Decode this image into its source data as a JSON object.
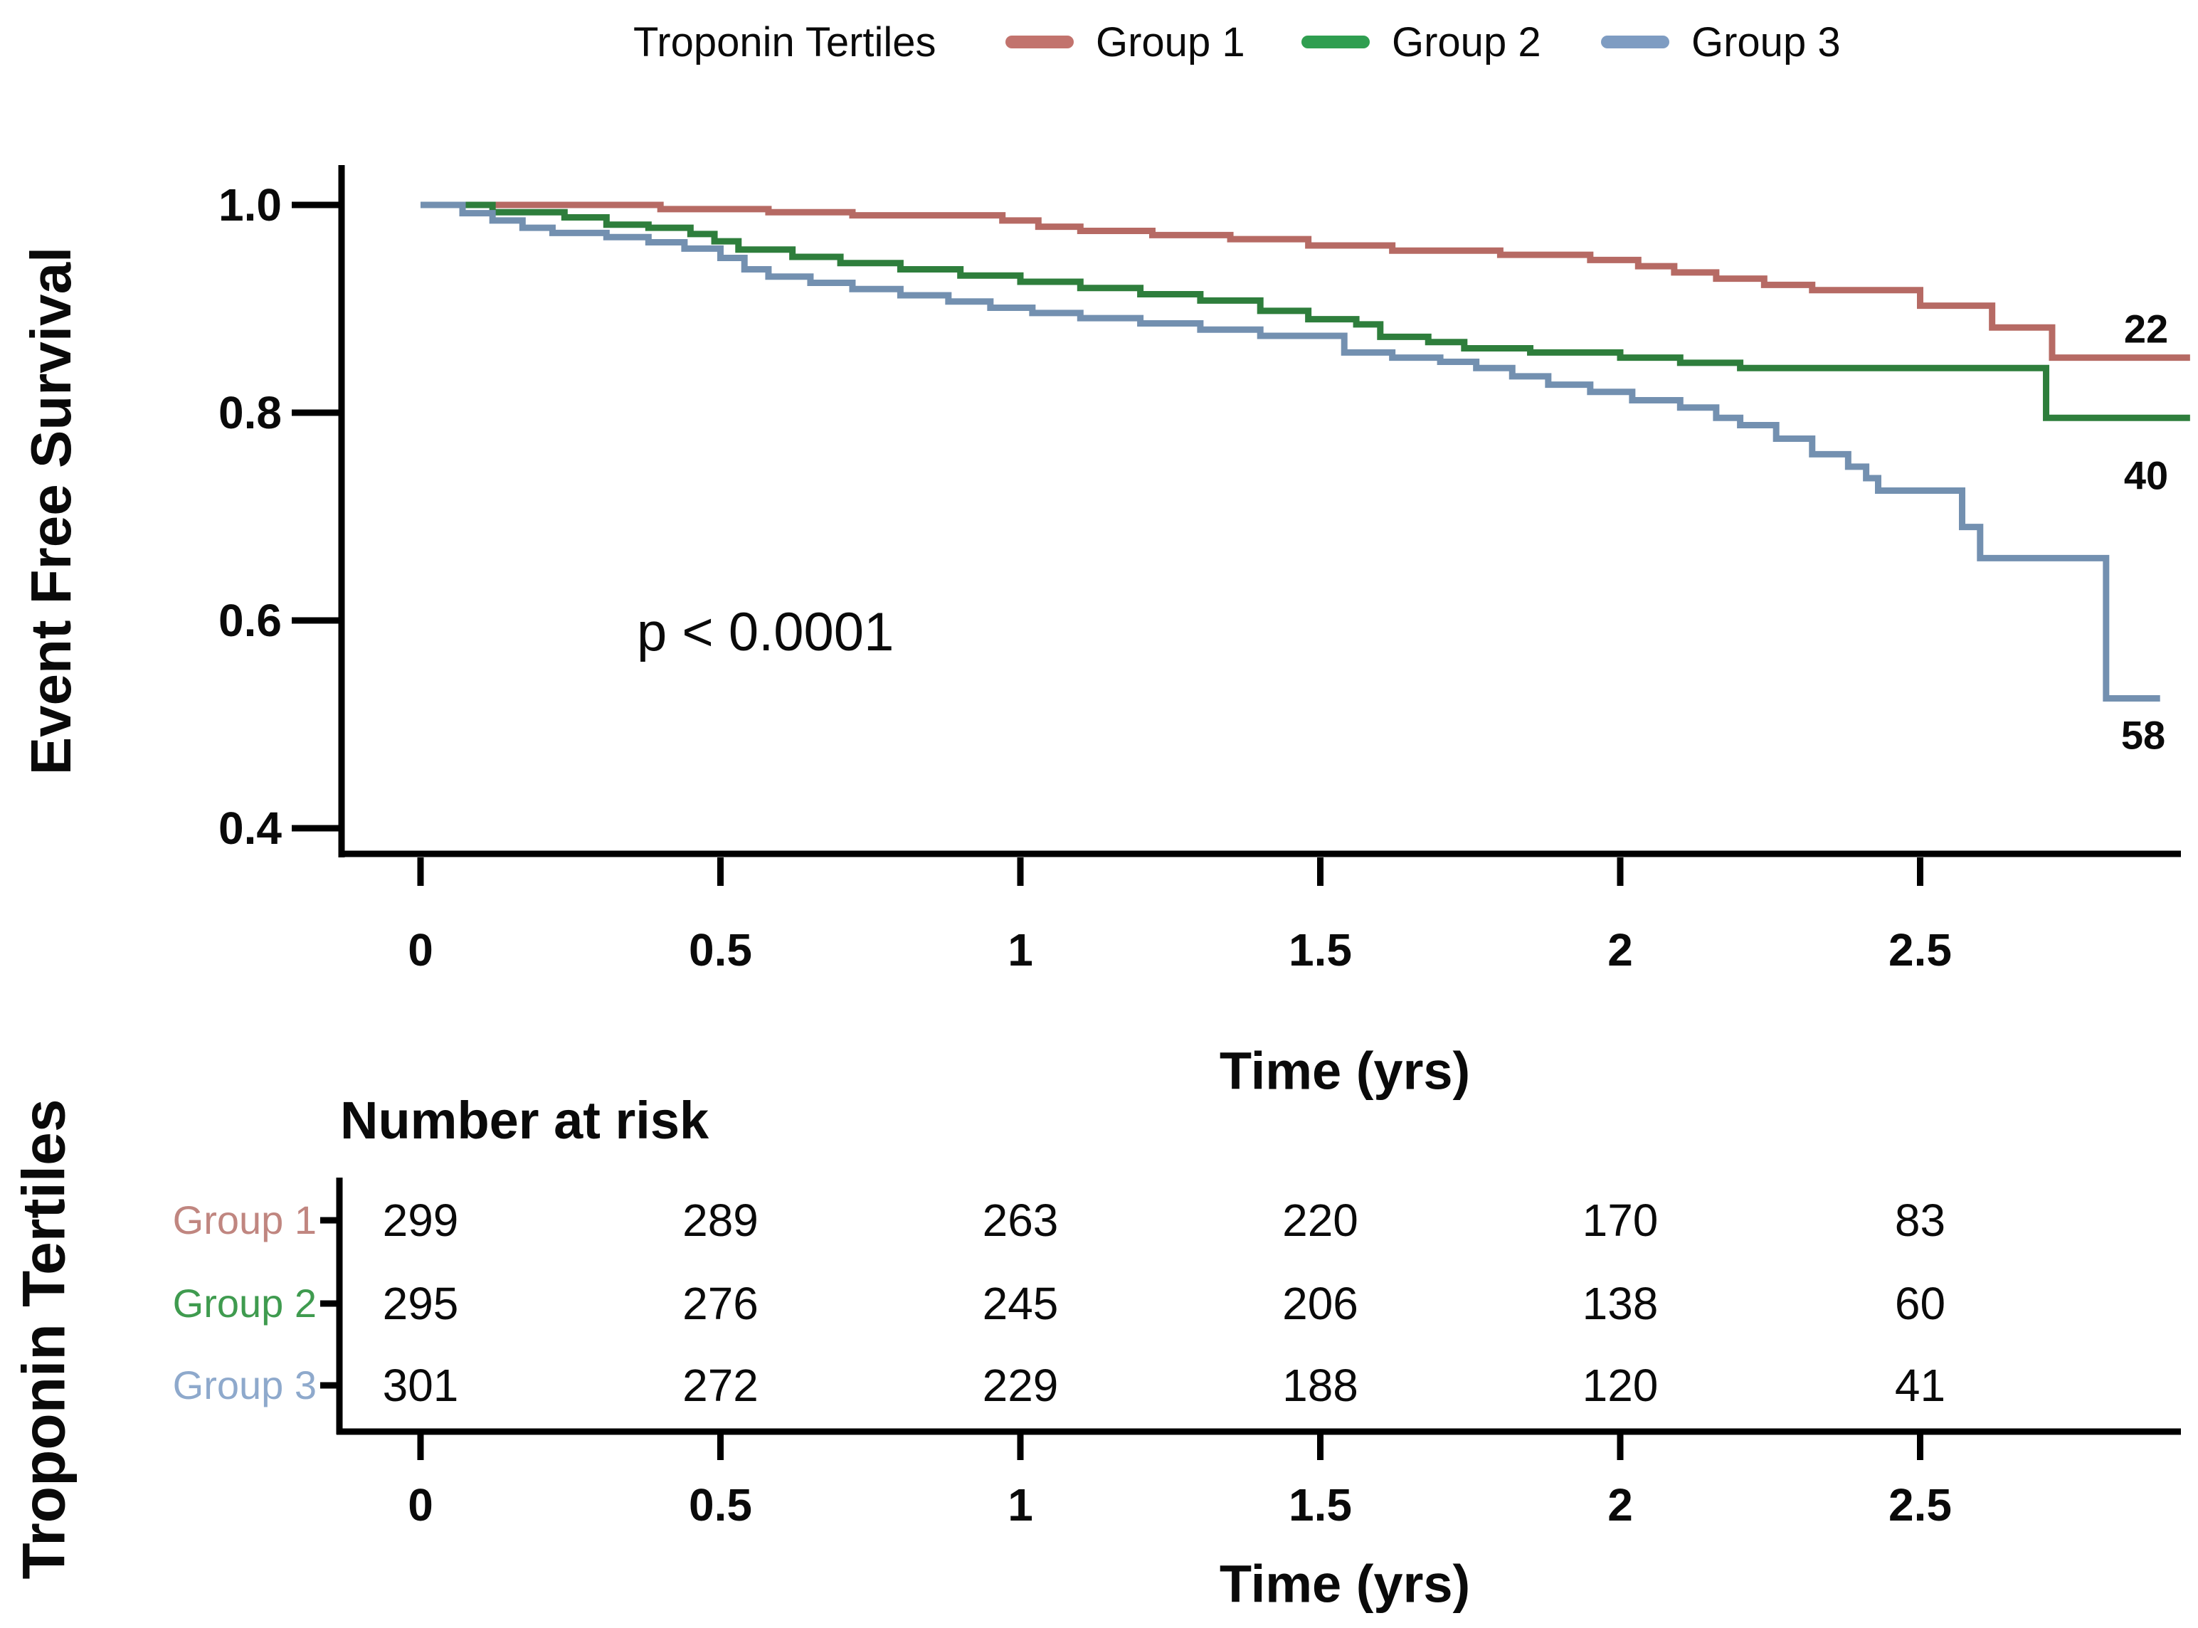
{
  "legend": {
    "title": "Troponin Tertiles",
    "items": [
      {
        "label": "Group 1",
        "color": "#c2736d"
      },
      {
        "label": "Group 2",
        "color": "#2f9e50"
      },
      {
        "label": "Group 3",
        "color": "#7e9cc2"
      }
    ]
  },
  "chart_data": {
    "type": "line",
    "subtype": "kaplan-meier-step",
    "title": "Troponin Tertiles",
    "xlabel": "Time (yrs)",
    "ylabel": "Event Free Survival",
    "annotation": "p < 0.0001",
    "xlim": [
      0,
      2.95
    ],
    "ylim": [
      0.35,
      1.02
    ],
    "x_ticks": [
      0,
      0.5,
      1,
      1.5,
      2,
      2.5
    ],
    "x_tick_labels": [
      "0",
      "0.5",
      "1",
      "1.5",
      "2",
      "2.5"
    ],
    "y_ticks": [
      1.0,
      0.8,
      0.6,
      0.4
    ],
    "y_tick_labels": [
      "1.0",
      "0.8",
      "0.6",
      "0.4"
    ],
    "grid": false,
    "legend_position": "top",
    "series": [
      {
        "name": "Group 1",
        "color": "#b66a64",
        "end_label": "22",
        "end": 2.95,
        "points": [
          [
            0,
            1.0
          ],
          [
            0.4,
            0.996
          ],
          [
            0.58,
            0.993
          ],
          [
            0.72,
            0.99
          ],
          [
            0.97,
            0.985
          ],
          [
            1.03,
            0.979
          ],
          [
            1.1,
            0.975
          ],
          [
            1.22,
            0.971
          ],
          [
            1.35,
            0.967
          ],
          [
            1.48,
            0.961
          ],
          [
            1.62,
            0.956
          ],
          [
            1.8,
            0.952
          ],
          [
            1.95,
            0.947
          ],
          [
            2.03,
            0.941
          ],
          [
            2.09,
            0.935
          ],
          [
            2.16,
            0.929
          ],
          [
            2.24,
            0.923
          ],
          [
            2.32,
            0.918
          ],
          [
            2.5,
            0.903
          ],
          [
            2.62,
            0.882
          ],
          [
            2.72,
            0.853
          ]
        ]
      },
      {
        "name": "Group 2",
        "color": "#2e7e3c",
        "end_label": "40",
        "end": 2.95,
        "points": [
          [
            0,
            1.0
          ],
          [
            0.12,
            0.993
          ],
          [
            0.24,
            0.988
          ],
          [
            0.31,
            0.981
          ],
          [
            0.38,
            0.978
          ],
          [
            0.45,
            0.972
          ],
          [
            0.49,
            0.965
          ],
          [
            0.53,
            0.957
          ],
          [
            0.62,
            0.95
          ],
          [
            0.7,
            0.944
          ],
          [
            0.8,
            0.938
          ],
          [
            0.9,
            0.932
          ],
          [
            1.0,
            0.926
          ],
          [
            1.1,
            0.92
          ],
          [
            1.2,
            0.914
          ],
          [
            1.3,
            0.908
          ],
          [
            1.4,
            0.898
          ],
          [
            1.48,
            0.89
          ],
          [
            1.56,
            0.885
          ],
          [
            1.6,
            0.873
          ],
          [
            1.68,
            0.868
          ],
          [
            1.74,
            0.862
          ],
          [
            1.85,
            0.858
          ],
          [
            2.0,
            0.853
          ],
          [
            2.1,
            0.848
          ],
          [
            2.2,
            0.843
          ],
          [
            2.71,
            0.795
          ]
        ]
      },
      {
        "name": "Group 3",
        "color": "#7390b0",
        "end_label": "58",
        "end": 2.9,
        "points": [
          [
            0,
            1.0
          ],
          [
            0.07,
            0.992
          ],
          [
            0.12,
            0.985
          ],
          [
            0.17,
            0.978
          ],
          [
            0.22,
            0.973
          ],
          [
            0.31,
            0.969
          ],
          [
            0.38,
            0.964
          ],
          [
            0.44,
            0.958
          ],
          [
            0.5,
            0.949
          ],
          [
            0.54,
            0.938
          ],
          [
            0.58,
            0.931
          ],
          [
            0.65,
            0.925
          ],
          [
            0.72,
            0.919
          ],
          [
            0.8,
            0.913
          ],
          [
            0.88,
            0.907
          ],
          [
            0.95,
            0.901
          ],
          [
            1.02,
            0.896
          ],
          [
            1.1,
            0.891
          ],
          [
            1.2,
            0.886
          ],
          [
            1.3,
            0.88
          ],
          [
            1.4,
            0.874
          ],
          [
            1.54,
            0.858
          ],
          [
            1.62,
            0.853
          ],
          [
            1.7,
            0.849
          ],
          [
            1.76,
            0.843
          ],
          [
            1.82,
            0.835
          ],
          [
            1.88,
            0.827
          ],
          [
            1.95,
            0.82
          ],
          [
            2.02,
            0.812
          ],
          [
            2.1,
            0.805
          ],
          [
            2.16,
            0.795
          ],
          [
            2.2,
            0.788
          ],
          [
            2.26,
            0.775
          ],
          [
            2.32,
            0.76
          ],
          [
            2.38,
            0.748
          ],
          [
            2.41,
            0.737
          ],
          [
            2.43,
            0.725
          ],
          [
            2.57,
            0.69
          ],
          [
            2.6,
            0.66
          ],
          [
            2.81,
            0.525
          ]
        ]
      }
    ]
  },
  "risk_table": {
    "title": "Number at risk",
    "axis_label": "Troponin Tertiles",
    "xlabel": "Time (yrs)",
    "times": [
      "0",
      "0.5",
      "1",
      "1.5",
      "2",
      "2.5"
    ],
    "rows": [
      {
        "label": "Group 1",
        "color": "#c08680",
        "values": [
          "299",
          "289",
          "263",
          "220",
          "170",
          "83"
        ]
      },
      {
        "label": "Group 2",
        "color": "#3f9b4f",
        "values": [
          "295",
          "276",
          "245",
          "206",
          "138",
          "60"
        ]
      },
      {
        "label": "Group 3",
        "color": "#8ea9cc",
        "values": [
          "301",
          "272",
          "229",
          "188",
          "120",
          "41"
        ]
      }
    ]
  }
}
